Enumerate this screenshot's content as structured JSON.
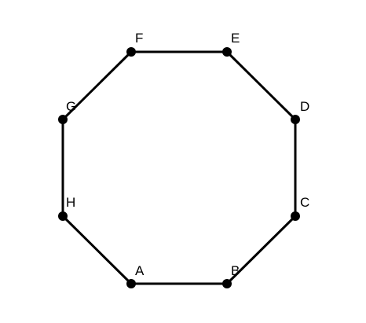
{
  "diagram": {
    "vertices": [
      {
        "id": "A",
        "label": "A"
      },
      {
        "id": "B",
        "label": "B"
      },
      {
        "id": "C",
        "label": "C"
      },
      {
        "id": "D",
        "label": "D"
      },
      {
        "id": "E",
        "label": "E"
      },
      {
        "id": "F",
        "label": "F"
      },
      {
        "id": "G",
        "label": "G"
      },
      {
        "id": "H",
        "label": "H"
      }
    ],
    "edges": [
      [
        "A",
        "B"
      ],
      [
        "B",
        "C"
      ],
      [
        "C",
        "D"
      ],
      [
        "D",
        "E"
      ],
      [
        "E",
        "F"
      ],
      [
        "F",
        "G"
      ],
      [
        "G",
        "H"
      ],
      [
        "H",
        "A"
      ]
    ]
  },
  "colors": {
    "line": "#000000",
    "vertex": "#000000",
    "background": "#ffffff"
  }
}
